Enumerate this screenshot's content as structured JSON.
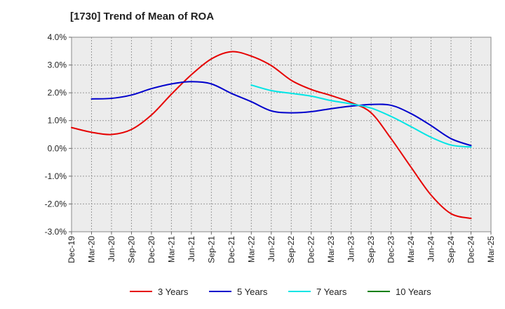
{
  "chart_data": {
    "type": "line",
    "title": "[1730]  Trend of Mean of ROA",
    "xlabel": "",
    "ylabel": "",
    "ylim": [
      -3.0,
      4.0
    ],
    "yticks": [
      "4.0%",
      "3.0%",
      "2.0%",
      "1.0%",
      "0.0%",
      "-1.0%",
      "-2.0%",
      "-3.0%"
    ],
    "categories": [
      "Dec-19",
      "Mar-20",
      "Jun-20",
      "Sep-20",
      "Dec-20",
      "Mar-21",
      "Jun-21",
      "Sep-21",
      "Dec-21",
      "Mar-22",
      "Jun-22",
      "Sep-22",
      "Dec-22",
      "Mar-23",
      "Jun-23",
      "Sep-23",
      "Dec-23",
      "Mar-24",
      "Jun-24",
      "Sep-24",
      "Dec-24",
      "Mar-25"
    ],
    "grid": true,
    "legend_position": "bottom",
    "series": [
      {
        "name": "3 Years",
        "color": "#e60000",
        "values": [
          0.75,
          0.58,
          0.5,
          0.68,
          1.2,
          1.95,
          2.65,
          3.22,
          3.48,
          3.32,
          2.98,
          2.45,
          2.12,
          1.9,
          1.65,
          1.28,
          0.35,
          -0.68,
          -1.68,
          -2.35,
          -2.52,
          null
        ]
      },
      {
        "name": "5 Years",
        "color": "#0000cc",
        "values": [
          null,
          1.78,
          1.8,
          1.92,
          2.15,
          2.32,
          2.4,
          2.32,
          1.98,
          1.68,
          1.35,
          1.28,
          1.32,
          1.43,
          1.52,
          1.58,
          1.55,
          1.25,
          0.82,
          0.35,
          0.1,
          null
        ]
      },
      {
        "name": "7 Years",
        "color": "#00e5e5",
        "values": [
          null,
          null,
          null,
          null,
          null,
          null,
          null,
          null,
          null,
          2.28,
          2.08,
          1.98,
          1.88,
          1.72,
          1.6,
          1.45,
          1.15,
          0.78,
          0.4,
          0.12,
          0.05,
          null
        ]
      },
      {
        "name": "10 Years",
        "color": "#008000",
        "values": [
          null,
          null,
          null,
          null,
          null,
          null,
          null,
          null,
          null,
          null,
          null,
          null,
          null,
          null,
          null,
          null,
          null,
          null,
          null,
          null,
          null,
          null
        ]
      }
    ]
  }
}
